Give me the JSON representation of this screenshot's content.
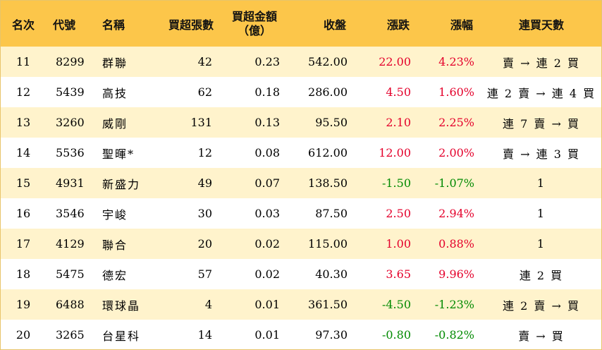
{
  "headers": {
    "rank": "名次",
    "code": "代號",
    "name": "名稱",
    "buy_lots": "買超張數",
    "buy_amount_line1": "買超金額",
    "buy_amount_line2": "（億）",
    "close": "收盤",
    "change": "漲跌",
    "change_pct": "漲幅",
    "days": "連買天數"
  },
  "rows": [
    {
      "rank": "11",
      "code": "8299",
      "name": "群聯",
      "lots": "42",
      "amount": "0.23",
      "close": "542.00",
      "change": "22.00",
      "pct": "4.23%",
      "dir": "up",
      "days": "賣 → 連 2 買"
    },
    {
      "rank": "12",
      "code": "5439",
      "name": "高技",
      "lots": "62",
      "amount": "0.18",
      "close": "286.00",
      "change": "4.50",
      "pct": "1.60%",
      "dir": "up",
      "days": "連 2 賣 → 連 4 買"
    },
    {
      "rank": "13",
      "code": "3260",
      "name": "威剛",
      "lots": "131",
      "amount": "0.13",
      "close": "95.50",
      "change": "2.10",
      "pct": "2.25%",
      "dir": "up",
      "days": "連 7 賣 → 買"
    },
    {
      "rank": "14",
      "code": "5536",
      "name": "聖暉*",
      "lots": "12",
      "amount": "0.08",
      "close": "612.00",
      "change": "12.00",
      "pct": "2.00%",
      "dir": "up",
      "days": "賣 → 連 3 買"
    },
    {
      "rank": "15",
      "code": "4931",
      "name": "新盛力",
      "lots": "49",
      "amount": "0.07",
      "close": "138.50",
      "change": "-1.50",
      "pct": "-1.07%",
      "dir": "down",
      "days": "1"
    },
    {
      "rank": "16",
      "code": "3546",
      "name": "宇峻",
      "lots": "30",
      "amount": "0.03",
      "close": "87.50",
      "change": "2.50",
      "pct": "2.94%",
      "dir": "up",
      "days": "1"
    },
    {
      "rank": "17",
      "code": "4129",
      "name": "聯合",
      "lots": "20",
      "amount": "0.02",
      "close": "115.00",
      "change": "1.00",
      "pct": "0.88%",
      "dir": "up",
      "days": "1"
    },
    {
      "rank": "18",
      "code": "5475",
      "name": "德宏",
      "lots": "57",
      "amount": "0.02",
      "close": "40.30",
      "change": "3.65",
      "pct": "9.96%",
      "dir": "up",
      "days": "連 2 買"
    },
    {
      "rank": "19",
      "code": "6488",
      "name": "環球晶",
      "lots": "4",
      "amount": "0.01",
      "close": "361.50",
      "change": "-4.50",
      "pct": "-1.23%",
      "dir": "down",
      "days": "連 2 賣 → 買"
    },
    {
      "rank": "20",
      "code": "3265",
      "name": "台星科",
      "lots": "14",
      "amount": "0.01",
      "close": "97.30",
      "change": "-0.80",
      "pct": "-0.82%",
      "dir": "down",
      "days": "賣 → 買"
    }
  ],
  "colors": {
    "header_bg": "#fcc64a",
    "alt_row_bg": "#fff3cc",
    "up": "#e4002b",
    "down": "#008a00"
  }
}
